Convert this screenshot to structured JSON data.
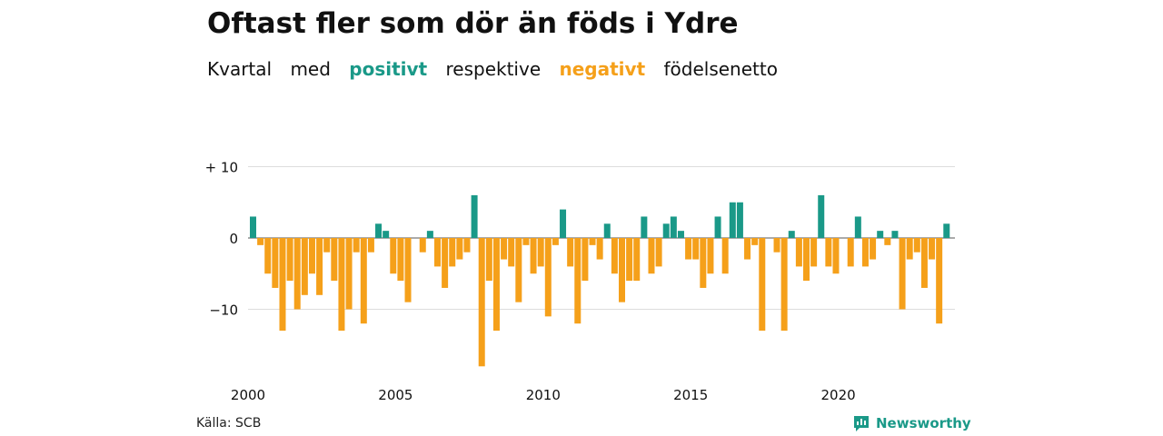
{
  "title": "Oftast fler som dör än föds i Ydre",
  "subtitle": {
    "parts": [
      "Kvartal",
      "med",
      "positivt",
      "respektive",
      "negativt",
      "födelsenetto"
    ]
  },
  "source": "Källa: SCB",
  "brand": {
    "name": "Newsworthy",
    "icon": "newsworthy-logo-icon"
  },
  "colors": {
    "positive": "#1a9988",
    "negative": "#f5a01a",
    "grid": "#dddddd",
    "text": "#111111"
  },
  "chart_data": {
    "type": "bar",
    "title": "Oftast fler som dör än föds i Ydre",
    "subtitle": "Kvartal med positivt respektive negativt födelsenetto",
    "x_start_year": 2000,
    "periods_per_year": 4,
    "xticks": [
      "2000",
      "2005",
      "2010",
      "2015",
      "2020"
    ],
    "yticks": [
      {
        "value": 10,
        "label": "+ 10"
      },
      {
        "value": 0,
        "label": "0"
      },
      {
        "value": -10,
        "label": "−10"
      }
    ],
    "ylim": [
      -18,
      10
    ],
    "grid": true,
    "values": [
      3,
      -1,
      -5,
      -7,
      -13,
      -6,
      -10,
      -8,
      -5,
      -8,
      -2,
      -6,
      -13,
      -10,
      -2,
      -12,
      -2,
      2,
      1,
      -5,
      -6,
      -9,
      0,
      -2,
      1,
      -4,
      -7,
      -4,
      -3,
      -2,
      6,
      -18,
      -6,
      -13,
      -3,
      -4,
      -9,
      -1,
      -5,
      -4,
      -11,
      -1,
      4,
      -4,
      -12,
      -6,
      -1,
      -3,
      2,
      -5,
      -9,
      -6,
      -6,
      3,
      -5,
      -4,
      2,
      3,
      1,
      -3,
      -3,
      -7,
      -5,
      3,
      -5,
      5,
      5,
      -3,
      -1,
      -13,
      0,
      -2,
      -13,
      1,
      -4,
      -6,
      -4,
      6,
      -4,
      -5,
      0,
      -4,
      3,
      -4,
      -3,
      1,
      -1,
      1,
      -10,
      -3,
      -2,
      -7,
      -3,
      -12,
      2
    ]
  }
}
